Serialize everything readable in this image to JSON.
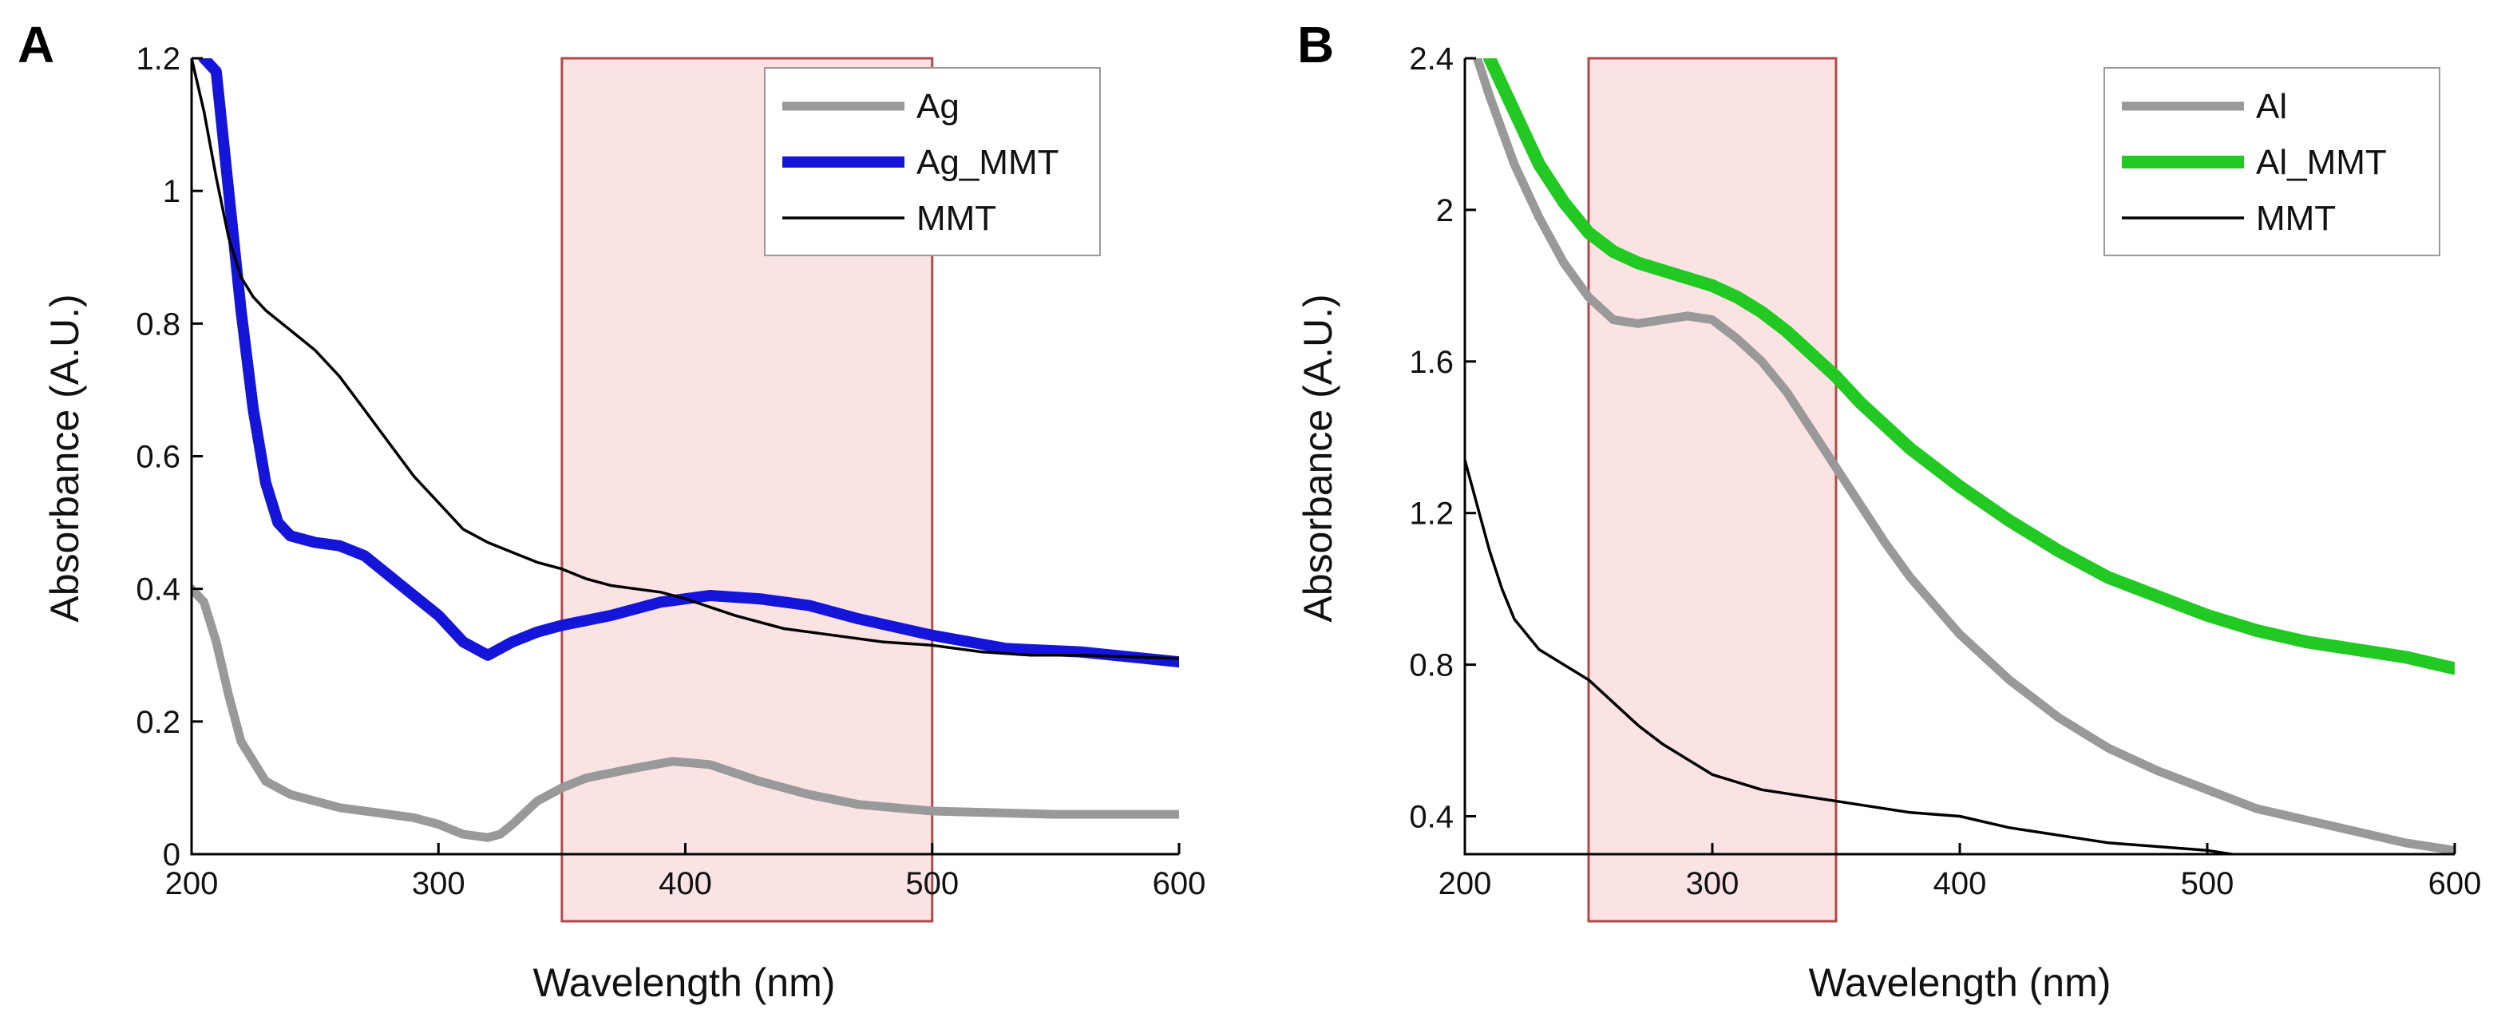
{
  "chart_data": [
    {
      "type": "line",
      "panel_label": "A",
      "xlabel": "Wavelength (nm)",
      "ylabel": "Absorbance (A.U.)",
      "xlim": [
        200,
        600
      ],
      "ylim": [
        0,
        1.2
      ],
      "xticks": [
        "200",
        "300",
        "400",
        "500",
        "600"
      ],
      "yticks": [
        "0",
        "0.2",
        "0.4",
        "0.6",
        "0.8",
        "1",
        "1.2"
      ],
      "highlight": {
        "x_range": [
          350,
          500
        ],
        "color": "#fbe3e3",
        "edge_color": "#b04a4a"
      },
      "legend_position": "top-right",
      "series": [
        {
          "name": "Ag",
          "color": "#999999",
          "x": [
            200,
            205,
            210,
            215,
            220,
            230,
            240,
            260,
            280,
            290,
            300,
            310,
            320,
            325,
            330,
            340,
            350,
            360,
            380,
            395,
            410,
            430,
            450,
            470,
            500,
            550,
            600
          ],
          "y": [
            0.4,
            0.38,
            0.32,
            0.24,
            0.17,
            0.11,
            0.09,
            0.07,
            0.06,
            0.055,
            0.045,
            0.03,
            0.025,
            0.03,
            0.045,
            0.08,
            0.1,
            0.115,
            0.13,
            0.14,
            0.135,
            0.11,
            0.09,
            0.075,
            0.065,
            0.06,
            0.06
          ]
        },
        {
          "name": "Ag_MMT",
          "color": "#1515d9",
          "x": [
            205,
            210,
            215,
            220,
            225,
            230,
            235,
            240,
            250,
            260,
            270,
            280,
            290,
            300,
            310,
            320,
            330,
            340,
            350,
            370,
            390,
            410,
            430,
            450,
            470,
            500,
            530,
            560,
            600
          ],
          "y": [
            1.2,
            1.18,
            1.0,
            0.82,
            0.67,
            0.56,
            0.5,
            0.48,
            0.47,
            0.465,
            0.45,
            0.42,
            0.39,
            0.36,
            0.32,
            0.3,
            0.32,
            0.335,
            0.345,
            0.36,
            0.38,
            0.39,
            0.385,
            0.375,
            0.355,
            0.33,
            0.31,
            0.305,
            0.29
          ]
        },
        {
          "name": "MMT",
          "color": "#000000",
          "x": [
            200,
            205,
            210,
            215,
            220,
            225,
            230,
            240,
            250,
            260,
            270,
            280,
            290,
            300,
            310,
            320,
            330,
            340,
            350,
            360,
            370,
            380,
            390,
            400,
            420,
            440,
            460,
            480,
            500,
            520,
            540,
            560,
            600
          ],
          "y": [
            1.2,
            1.12,
            1.02,
            0.93,
            0.87,
            0.84,
            0.82,
            0.79,
            0.76,
            0.72,
            0.67,
            0.62,
            0.57,
            0.53,
            0.49,
            0.47,
            0.455,
            0.44,
            0.43,
            0.415,
            0.405,
            0.4,
            0.395,
            0.385,
            0.36,
            0.34,
            0.33,
            0.32,
            0.315,
            0.305,
            0.3,
            0.3,
            0.295
          ]
        }
      ]
    },
    {
      "type": "line",
      "panel_label": "B",
      "xlabel": "Wavelength (nm)",
      "ylabel": "Absorbance (A.U.)",
      "xlim": [
        200,
        600
      ],
      "ylim": [
        0.3,
        2.4
      ],
      "xticks": [
        "200",
        "300",
        "400",
        "500",
        "600"
      ],
      "yticks": [
        "0.4",
        "0.8",
        "1.2",
        "1.6",
        "2",
        "2.4"
      ],
      "highlight": {
        "x_range": [
          250,
          350
        ],
        "color": "#fbe3e3",
        "edge_color": "#b04a4a"
      },
      "legend_position": "top-right",
      "series": [
        {
          "name": "Al",
          "color": "#999999",
          "x": [
            205,
            210,
            220,
            230,
            240,
            250,
            260,
            270,
            280,
            290,
            300,
            310,
            320,
            330,
            340,
            350,
            360,
            370,
            380,
            400,
            420,
            440,
            460,
            480,
            500,
            520,
            540,
            560,
            580,
            600
          ],
          "y": [
            2.4,
            2.3,
            2.12,
            1.98,
            1.86,
            1.77,
            1.71,
            1.7,
            1.71,
            1.72,
            1.71,
            1.66,
            1.6,
            1.52,
            1.42,
            1.32,
            1.22,
            1.12,
            1.03,
            0.88,
            0.76,
            0.66,
            0.58,
            0.52,
            0.47,
            0.42,
            0.39,
            0.36,
            0.33,
            0.31
          ]
        },
        {
          "name": "Al_MMT",
          "color": "#22c922",
          "x": [
            210,
            220,
            230,
            240,
            250,
            260,
            270,
            280,
            290,
            300,
            310,
            320,
            330,
            340,
            350,
            360,
            380,
            400,
            420,
            440,
            460,
            480,
            500,
            520,
            540,
            560,
            580,
            600
          ],
          "y": [
            2.4,
            2.26,
            2.12,
            2.02,
            1.94,
            1.89,
            1.86,
            1.84,
            1.82,
            1.8,
            1.77,
            1.73,
            1.68,
            1.62,
            1.56,
            1.49,
            1.37,
            1.27,
            1.18,
            1.1,
            1.03,
            0.98,
            0.93,
            0.89,
            0.86,
            0.84,
            0.82,
            0.79
          ]
        },
        {
          "name": "MMT",
          "color": "#000000",
          "x": [
            200,
            205,
            210,
            215,
            220,
            230,
            240,
            250,
            260,
            270,
            280,
            290,
            300,
            320,
            340,
            360,
            380,
            400,
            420,
            440,
            460,
            480,
            500,
            510
          ],
          "y": [
            1.34,
            1.22,
            1.1,
            1.0,
            0.92,
            0.84,
            0.8,
            0.76,
            0.7,
            0.64,
            0.59,
            0.55,
            0.51,
            0.47,
            0.45,
            0.43,
            0.41,
            0.4,
            0.37,
            0.35,
            0.33,
            0.32,
            0.31,
            0.3
          ]
        }
      ]
    }
  ]
}
